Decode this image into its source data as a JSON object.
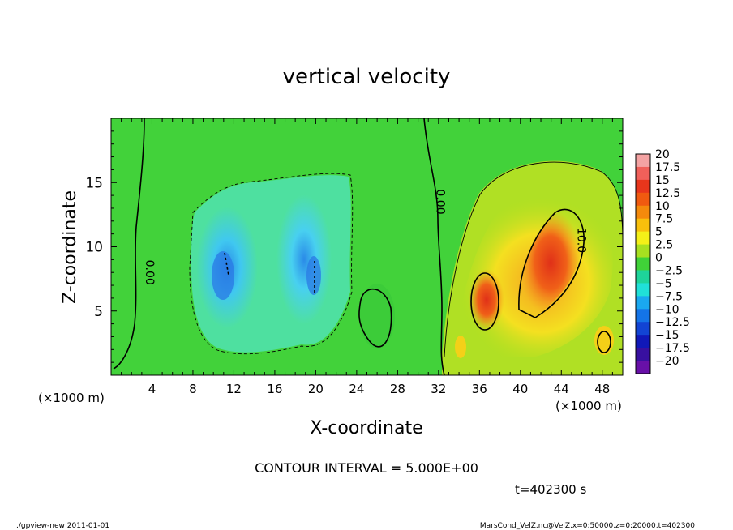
{
  "chart_data": {
    "type": "heatmap",
    "title": "vertical velocity",
    "xlabel": "X-coordinate",
    "ylabel": "Z-coordinate",
    "x_unit_left": "(×1000 m)",
    "x_unit_right": "(×1000 m)",
    "xlim": [
      0,
      50
    ],
    "ylim": [
      0,
      20
    ],
    "x_ticks": [
      4,
      8,
      12,
      16,
      20,
      24,
      28,
      32,
      36,
      40,
      44,
      48
    ],
    "y_ticks": [
      5,
      10,
      15
    ],
    "colorbar": {
      "levels": [
        "20",
        "17.5",
        "15",
        "12.5",
        "10",
        "7.5",
        "5",
        "2.5",
        "0",
        "−2.5",
        "−5",
        "−7.5",
        "−10",
        "−12.5",
        "−15",
        "−17.5",
        "−20"
      ],
      "colors": [
        "#f4a3a3",
        "#f0605a",
        "#e8361c",
        "#f05a10",
        "#f48a0c",
        "#f8c00c",
        "#f4f018",
        "#a8e020",
        "#40d238",
        "#1ed49a",
        "#20e0d8",
        "#1aa8f0",
        "#1474e8",
        "#1244d4",
        "#1018b8",
        "#3810a0",
        "#6810a8"
      ]
    },
    "contour_labels": [
      {
        "text": "0.00",
        "x": 3.4,
        "z": 8.0
      },
      {
        "text": "0.00",
        "x": 31.8,
        "z": 13.5
      },
      {
        "text": "10.0",
        "x": 45.6,
        "z": 10.5
      }
    ],
    "contour_interval_text": "CONTOUR INTERVAL = 5.000E+00",
    "time_text": "t=402300 s"
  },
  "footer": {
    "left": "./gpview-new   2011-01-01",
    "right": "MarsCond_VelZ.nc@VelZ,x=0:50000,z=0:20000,t=402300"
  }
}
